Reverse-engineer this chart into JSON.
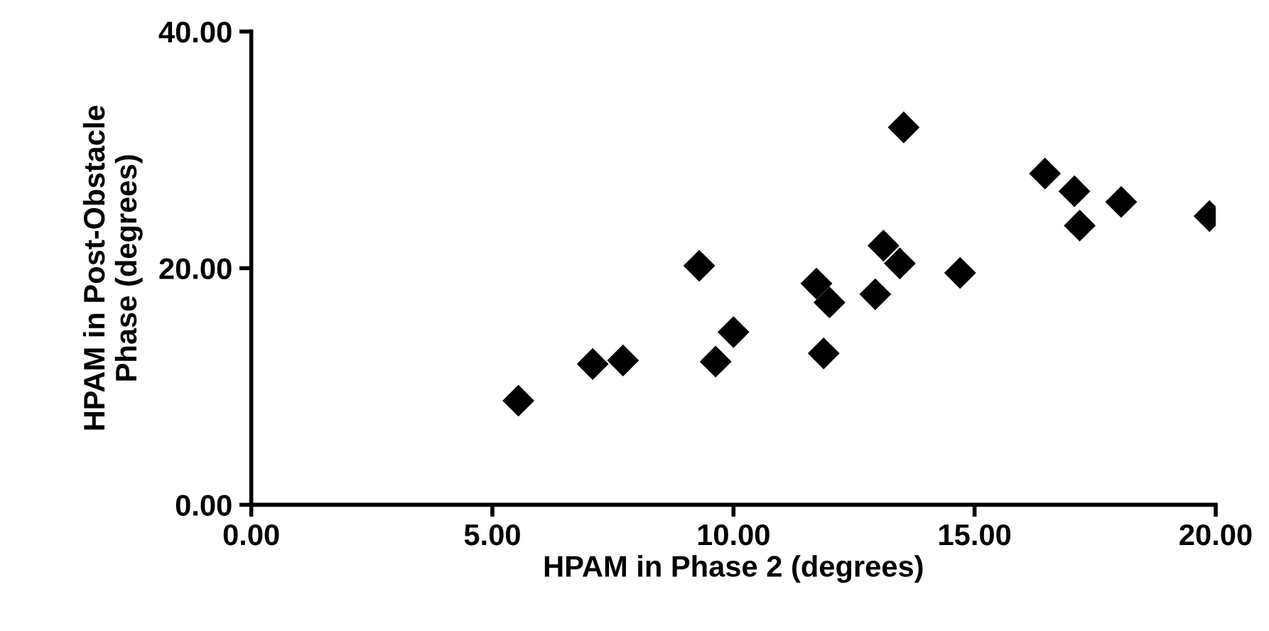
{
  "chart_data": {
    "type": "scatter",
    "xlabel": "HPAM in Phase 2 (degrees)",
    "ylabel": "HPAM in Post-Obstacle\nPhase (degrees)",
    "x": [
      5.54,
      7.08,
      7.71,
      9.29,
      9.63,
      10.0,
      11.72,
      11.99,
      11.87,
      12.94,
      13.11,
      13.45,
      13.53,
      14.7,
      16.46,
      17.07,
      17.18,
      18.04,
      19.87
    ],
    "values": [
      8.8,
      11.9,
      12.2,
      20.2,
      12.1,
      14.6,
      18.7,
      17.1,
      12.8,
      17.8,
      21.9,
      20.4,
      31.9,
      19.6,
      28.0,
      26.5,
      23.6,
      25.6,
      24.4
    ],
    "color": "#000000",
    "marker": "diamond",
    "xlim": [
      0,
      20
    ],
    "ylim": [
      0,
      40
    ],
    "xticks": [
      {
        "value": 0,
        "label": "0.00"
      },
      {
        "value": 5,
        "label": "5.00"
      },
      {
        "value": 10,
        "label": "10.00"
      },
      {
        "value": 15,
        "label": "15.00"
      },
      {
        "value": 20,
        "label": "20.00"
      }
    ],
    "yticks": [
      {
        "value": 0,
        "label": "0.00"
      },
      {
        "value": 20,
        "label": "20.00"
      },
      {
        "value": 40,
        "label": "40.00"
      }
    ],
    "grid": false
  }
}
